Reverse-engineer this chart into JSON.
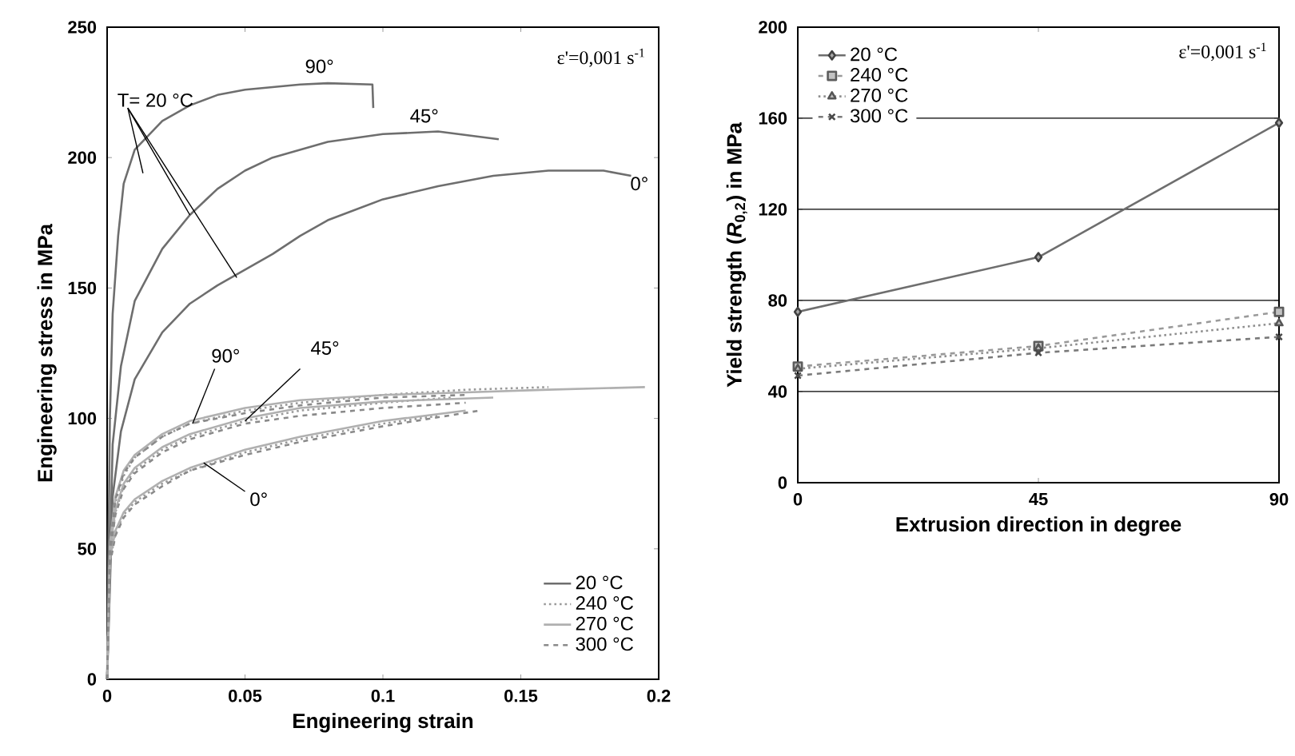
{
  "chart_data": [
    {
      "type": "line",
      "xlabel": "Engineering strain",
      "ylabel": "Engineering stress in MPa",
      "xlim": [
        0,
        0.2
      ],
      "ylim": [
        0,
        250
      ],
      "xticks": [
        0,
        0.05,
        0.1,
        0.15,
        0.2
      ],
      "yticks": [
        0,
        50,
        100,
        150,
        200,
        250
      ],
      "legend": "bottom right",
      "series": [
        {
          "name": "20  °C",
          "color": "#6e6e6e",
          "line_style": "solid",
          "x": [
            0,
            0.001,
            0.002,
            0.004,
            0.006,
            0.01,
            0.02,
            0.03,
            0.04,
            0.05,
            0.06,
            0.07,
            0.08,
            0.0962,
            0.0965
          ],
          "values": [
            0,
            100,
            140,
            170,
            190,
            203,
            214,
            220,
            224,
            226,
            227,
            228,
            228.5,
            228,
            219
          ]
        },
        {
          "color": "#6e6e6e",
          "line_style": "solid",
          "x": [
            0,
            0.002,
            0.005,
            0.01,
            0.02,
            0.03,
            0.04,
            0.05,
            0.06,
            0.08,
            0.1,
            0.12,
            0.142
          ],
          "values": [
            0,
            90,
            120,
            145,
            165,
            178,
            188,
            195,
            200,
            206,
            209,
            210,
            207
          ]
        },
        {
          "color": "#6e6e6e",
          "line_style": "solid",
          "x": [
            0,
            0.002,
            0.005,
            0.01,
            0.02,
            0.03,
            0.04,
            0.05,
            0.06,
            0.07,
            0.08,
            0.1,
            0.12,
            0.14,
            0.16,
            0.18,
            0.19
          ],
          "values": [
            0,
            70,
            95,
            115,
            133,
            144,
            151,
            157,
            163,
            170,
            176,
            184,
            189,
            193,
            195,
            195,
            193
          ]
        },
        {
          "name": "240 °C",
          "color": "#9a9a9a",
          "line_style": "dotted",
          "x": [
            0,
            0.001,
            0.003,
            0.006,
            0.01,
            0.02,
            0.03,
            0.05,
            0.07,
            0.1,
            0.13,
            0.16
          ],
          "values": [
            0,
            50,
            68,
            78,
            85,
            93,
            98,
            103,
            106,
            109,
            111,
            112
          ]
        },
        {
          "color": "#9a9a9a",
          "line_style": "dotted",
          "x": [
            0,
            0.001,
            0.003,
            0.006,
            0.01,
            0.02,
            0.03,
            0.05,
            0.07,
            0.1,
            0.125
          ],
          "values": [
            0,
            48,
            64,
            74,
            80,
            88,
            93,
            99,
            103,
            106,
            108
          ]
        },
        {
          "color": "#9a9a9a",
          "line_style": "dotted",
          "x": [
            0,
            0.001,
            0.003,
            0.006,
            0.01,
            0.02,
            0.03,
            0.05,
            0.07,
            0.1,
            0.12
          ],
          "values": [
            0,
            45,
            56,
            63,
            68,
            75,
            80,
            87,
            92,
            98,
            101
          ]
        },
        {
          "name": "270 °C",
          "color": "#b0b0b0",
          "line_style": "solid",
          "x": [
            0,
            0.001,
            0.003,
            0.006,
            0.01,
            0.02,
            0.03,
            0.05,
            0.07,
            0.1,
            0.13,
            0.16,
            0.195
          ],
          "values": [
            0,
            52,
            70,
            80,
            86,
            94,
            99,
            104,
            107,
            109,
            110,
            111,
            112
          ]
        },
        {
          "color": "#b0b0b0",
          "line_style": "solid",
          "x": [
            0,
            0.001,
            0.003,
            0.006,
            0.01,
            0.02,
            0.03,
            0.05,
            0.07,
            0.1,
            0.14
          ],
          "values": [
            0,
            49,
            65,
            75,
            81,
            89,
            94,
            100,
            104,
            106.5,
            108
          ]
        },
        {
          "color": "#b0b0b0",
          "line_style": "solid",
          "x": [
            0,
            0.001,
            0.003,
            0.006,
            0.01,
            0.02,
            0.03,
            0.05,
            0.07,
            0.1,
            0.13
          ],
          "values": [
            0,
            46,
            57,
            64,
            69,
            76,
            81,
            88,
            93,
            99,
            103
          ]
        },
        {
          "name": "300 °C",
          "color": "#8a8a8a",
          "line_style": "dashed",
          "x": [
            0,
            0.001,
            0.003,
            0.006,
            0.01,
            0.02,
            0.03,
            0.05,
            0.07,
            0.1,
            0.13
          ],
          "values": [
            0,
            51,
            69,
            79,
            85,
            93,
            98,
            102,
            105,
            108,
            109
          ]
        },
        {
          "color": "#8a8a8a",
          "line_style": "dashed",
          "x": [
            0,
            0.001,
            0.003,
            0.006,
            0.01,
            0.02,
            0.03,
            0.05,
            0.07,
            0.1,
            0.13
          ],
          "values": [
            0,
            48,
            63,
            73,
            79,
            87,
            92,
            98,
            101,
            104,
            106
          ]
        },
        {
          "color": "#8a8a8a",
          "line_style": "dashed",
          "x": [
            0,
            0.001,
            0.003,
            0.006,
            0.01,
            0.02,
            0.03,
            0.05,
            0.07,
            0.1,
            0.135
          ],
          "values": [
            0,
            44,
            55,
            62,
            67,
            74,
            80,
            86,
            91,
            97,
            103
          ]
        }
      ],
      "annotations": [
        "ε'=0,001 s$^{-1}$",
        {
          "text": "T= 20 °C",
          "x": 0.03,
          "y": 178
        },
        "90°",
        "45°",
        "0°",
        {
          "text": "90°",
          "x": 0.031,
          "y": 98
        },
        {
          "text": "45°",
          "x": 0.05,
          "y": 99
        },
        {
          "text": "0°",
          "x": 0.035,
          "y": 83
        }
      ]
    },
    {
      "type": "line",
      "xlabel": "Extrusion direction in degree",
      "ylabel": "Yield strength (*R*$_{0,2}$) in MPa",
      "xlim": [
        0,
        90
      ],
      "ylim": [
        0,
        200
      ],
      "xticks": [
        0,
        45,
        90
      ],
      "yticks": [
        0,
        40,
        80,
        120,
        160,
        200
      ],
      "grid": "y",
      "legend": "top left",
      "series": [
        {
          "name": "20  °C",
          "color": "#6e6e6e",
          "line_style": "solid",
          "marker": "diamond",
          "x": [
            0,
            45,
            90
          ],
          "values": [
            75,
            99,
            158
          ]
        },
        {
          "name": "240 °C",
          "color": "#9a9a9a",
          "line_style": "dashed",
          "marker": "square",
          "x": [
            0,
            45,
            90
          ],
          "values": [
            51,
            60,
            75
          ]
        },
        {
          "name": "270 °C",
          "color": "#8f8f8f",
          "line_style": "dotted",
          "marker": "triangle",
          "x": [
            0,
            45,
            90
          ],
          "values": [
            50,
            59,
            70
          ]
        },
        {
          "name": "300 °C",
          "color": "#7a7a7a",
          "line_style": "dashed",
          "marker": "cross",
          "x": [
            0,
            45,
            90
          ],
          "values": [
            47,
            57,
            64
          ]
        }
      ],
      "annotations": [
        "ε'=0,001 s$^{-1}$"
      ]
    }
  ]
}
